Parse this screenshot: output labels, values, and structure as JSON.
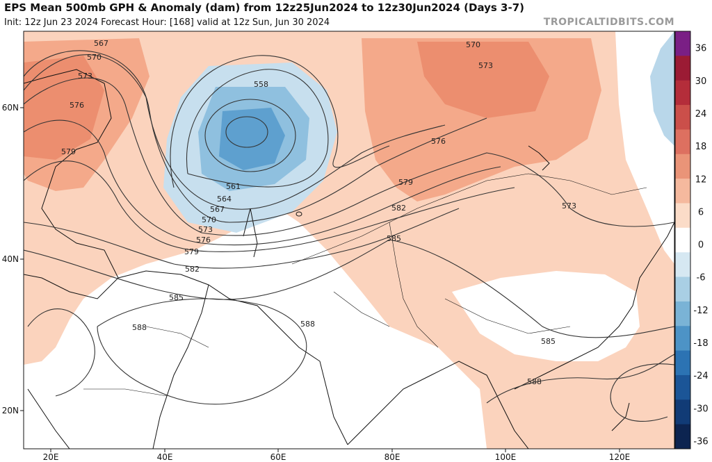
{
  "header": {
    "title": "EPS Mean 500mb GPH & Anomaly (dam) from 12z25Jun2024 to 12z30Jun2024 (Days 3-7)",
    "subtitle": "Init: 12z Jun 23 2024   Forecast Hour: [168]   valid at 12z Sun, Jun 30 2024",
    "brand": "TROPICALTIDBITS.COM"
  },
  "map": {
    "lon_labels": [
      "20E",
      "40E",
      "60E",
      "80E",
      "100E",
      "120E"
    ],
    "lat_labels": [
      "60N",
      "40N",
      "20N"
    ],
    "contour_labels": [
      "567",
      "570",
      "573",
      "576",
      "579",
      "558",
      "561",
      "564",
      "567",
      "570",
      "573",
      "576",
      "579",
      "582",
      "585",
      "588",
      "570",
      "573",
      "576",
      "579",
      "582",
      "585",
      "573",
      "585",
      "588"
    ]
  },
  "colorbar": {
    "ticks": [
      "36",
      "30",
      "24",
      "18",
      "12",
      "6",
      "0",
      "-6",
      "-12",
      "-18",
      "-24",
      "-30",
      "-36"
    ],
    "colors": [
      "#7a1f85",
      "#9b1b34",
      "#b42d3a",
      "#cb4f4a",
      "#dd7060",
      "#ea9478",
      "#f5b99e",
      "#fbdcc8",
      "#ffffff",
      "#d6e8f2",
      "#a9cfe4",
      "#7ab3d6",
      "#4d93c6",
      "#2c73b3",
      "#1b5597",
      "#113b76",
      "#0c2450"
    ]
  }
}
